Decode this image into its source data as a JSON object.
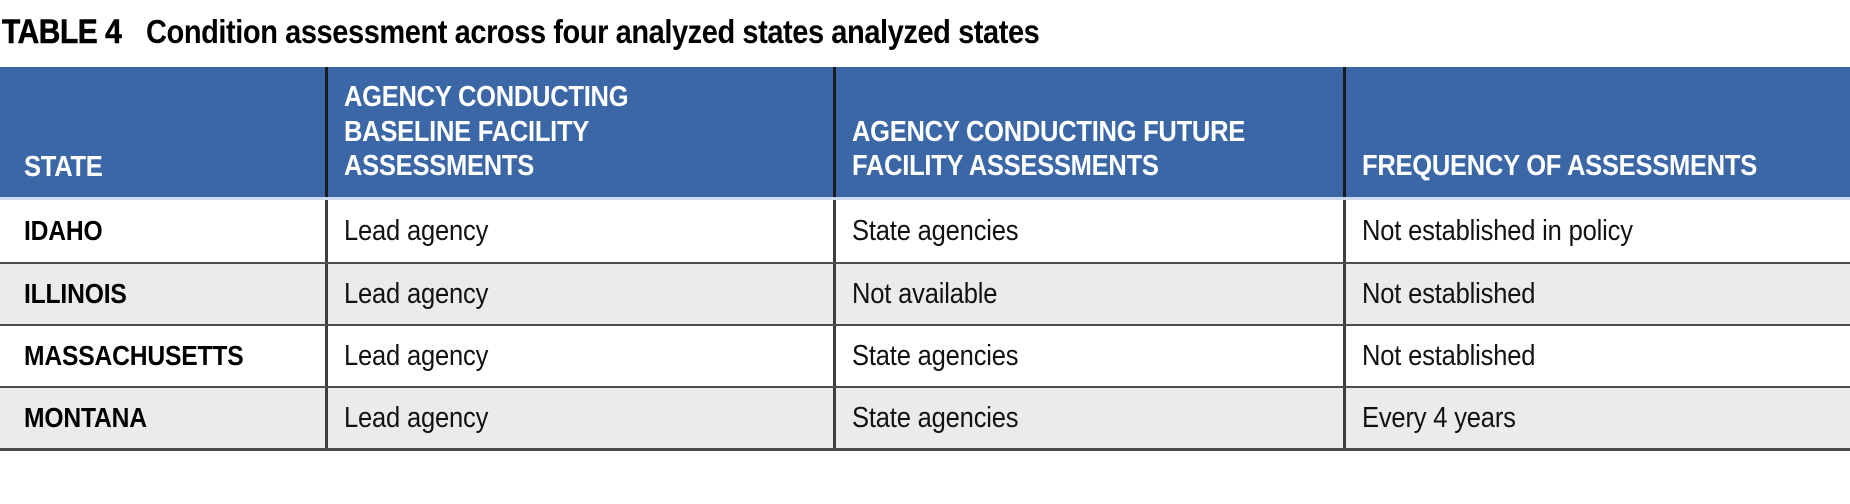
{
  "title": {
    "label": "TABLE 4",
    "caption": "Condition assessment across four analyzed states analyzed states"
  },
  "table": {
    "columns": [
      {
        "header": "STATE"
      },
      {
        "header": "AGENCY CONDUCTING\nBASELINE FACILITY\nASSESSMENTS"
      },
      {
        "header": "AGENCY CONDUCTING FUTURE\nFACILITY ASSESSMENTS"
      },
      {
        "header": "FREQUENCY OF ASSESSMENTS"
      }
    ],
    "rows": [
      {
        "state": "IDAHO",
        "baseline": "Lead agency",
        "future": "State agencies",
        "frequency": "Not established in policy"
      },
      {
        "state": "ILLINOIS",
        "baseline": "Lead agency",
        "future": "Not available",
        "frequency": "Not established"
      },
      {
        "state": "MASSACHUSETTS",
        "baseline": "Lead agency",
        "future": "State agencies",
        "frequency": "Not established"
      },
      {
        "state": "MONTANA",
        "baseline": "Lead agency",
        "future": "State agencies",
        "frequency": "Every 4 years"
      }
    ]
  },
  "colors": {
    "header_background": "#3b67a6",
    "header_text": "#ffffff",
    "header_underline": "#ccd9ef",
    "row_alternate": "#eaebed",
    "grid_line": "#4d4d4d",
    "header_divider": "#1c1c1c",
    "body_text": "#121212"
  }
}
